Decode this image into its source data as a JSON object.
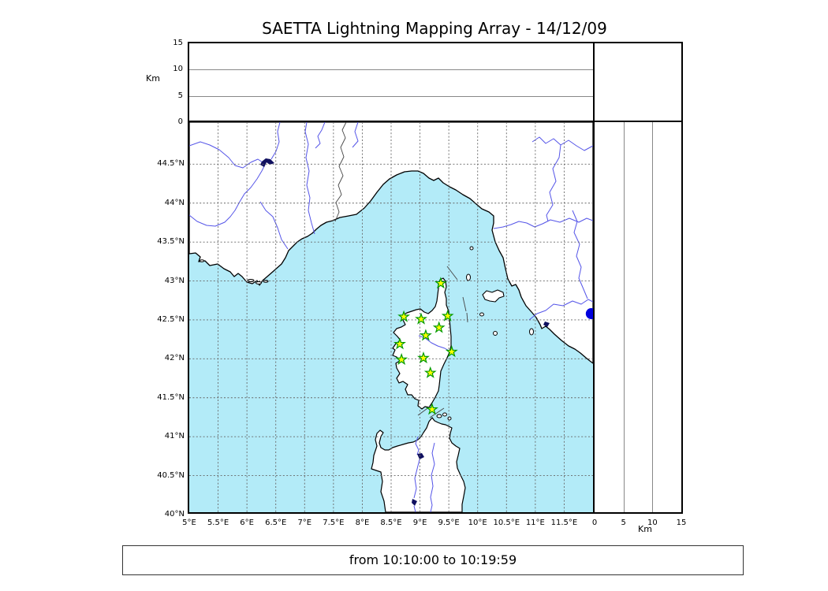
{
  "title": "SAETTA Lightning Mapping Array - 14/12/09",
  "footer": {
    "time_range": "from 10:10:00 to 10:19:59"
  },
  "colors": {
    "sea": "#b3ebf8",
    "land": "#ffffff",
    "coast": "#000000",
    "river": "#5555e8",
    "lake": "#101060",
    "boundary": "#444444",
    "grid": "#666666",
    "panel_grid": "#888888",
    "station_fill": "#ffff00",
    "station_edge": "#009900",
    "detection": "#0000dd"
  },
  "altitude_axis": {
    "label": "Km",
    "min": 0,
    "max": 15,
    "ticks": [
      0,
      5,
      10,
      15
    ],
    "gridlines": [
      5,
      10
    ]
  },
  "map_axes": {
    "lon_min": 5.0,
    "lon_max": 12.0,
    "lat_min": 40.03,
    "lat_max": 45.04,
    "grid_step_deg": 0.5,
    "lon_ticks": [
      {
        "value": 5.0,
        "label": "5°E"
      },
      {
        "value": 5.5,
        "label": "5.5°E"
      },
      {
        "value": 6.0,
        "label": "6°E"
      },
      {
        "value": 6.5,
        "label": "6.5°E"
      },
      {
        "value": 7.0,
        "label": "7°E"
      },
      {
        "value": 7.5,
        "label": "7.5°E"
      },
      {
        "value": 8.0,
        "label": "8°E"
      },
      {
        "value": 8.5,
        "label": "8.5°E"
      },
      {
        "value": 9.0,
        "label": "9°E"
      },
      {
        "value": 9.5,
        "label": "9.5°E"
      },
      {
        "value": 10.0,
        "label": "10°E"
      },
      {
        "value": 10.5,
        "label": "10.5°E"
      },
      {
        "value": 11.0,
        "label": "11°E"
      },
      {
        "value": 11.5,
        "label": "11.5°E"
      }
    ],
    "lat_ticks": [
      {
        "value": 44.5,
        "label": "44.5°N"
      },
      {
        "value": 44.0,
        "label": "44°N"
      },
      {
        "value": 43.5,
        "label": "43.5°N"
      },
      {
        "value": 43.0,
        "label": "43°N"
      },
      {
        "value": 42.5,
        "label": "42.5°N"
      },
      {
        "value": 42.0,
        "label": "42°N"
      },
      {
        "value": 41.5,
        "label": "41.5°N"
      },
      {
        "value": 41.0,
        "label": "41°N"
      },
      {
        "value": 40.5,
        "label": "40.5°N"
      },
      {
        "value": 40.0,
        "label": "40°N"
      }
    ]
  },
  "chart_data": {
    "type": "scatter",
    "title": "SAETTA Lightning Mapping Array - 14/12/09",
    "time_window": "from 10:10:00 to 10:19:59",
    "map_extent_deg": {
      "lon": [
        5.0,
        12.0
      ],
      "lat": [
        40.03,
        45.04
      ]
    },
    "altitude_range_km": [
      0,
      15
    ],
    "altitude_ticks_km": [
      0,
      5,
      10,
      15
    ],
    "grid": "0.5 degree dashed graticule",
    "legend_position": "none",
    "series": [
      {
        "name": "saetta-station",
        "marker": "star",
        "color": "#ffff00",
        "edge": "#009900",
        "points": [
          {
            "lon": 9.36,
            "lat": 42.97
          },
          {
            "lon": 8.72,
            "lat": 42.54
          },
          {
            "lon": 9.02,
            "lat": 42.51
          },
          {
            "lon": 9.48,
            "lat": 42.55
          },
          {
            "lon": 9.33,
            "lat": 42.4
          },
          {
            "lon": 9.1,
            "lat": 42.3
          },
          {
            "lon": 8.65,
            "lat": 42.19
          },
          {
            "lon": 9.55,
            "lat": 42.09
          },
          {
            "lon": 9.06,
            "lat": 42.01
          },
          {
            "lon": 8.68,
            "lat": 41.99
          },
          {
            "lon": 9.18,
            "lat": 41.82
          },
          {
            "lon": 9.21,
            "lat": 41.35
          }
        ]
      },
      {
        "name": "lightning-source",
        "marker": "circle",
        "color": "#0000dd",
        "points": [
          {
            "lon": 11.97,
            "lat": 42.58
          }
        ]
      }
    ]
  }
}
